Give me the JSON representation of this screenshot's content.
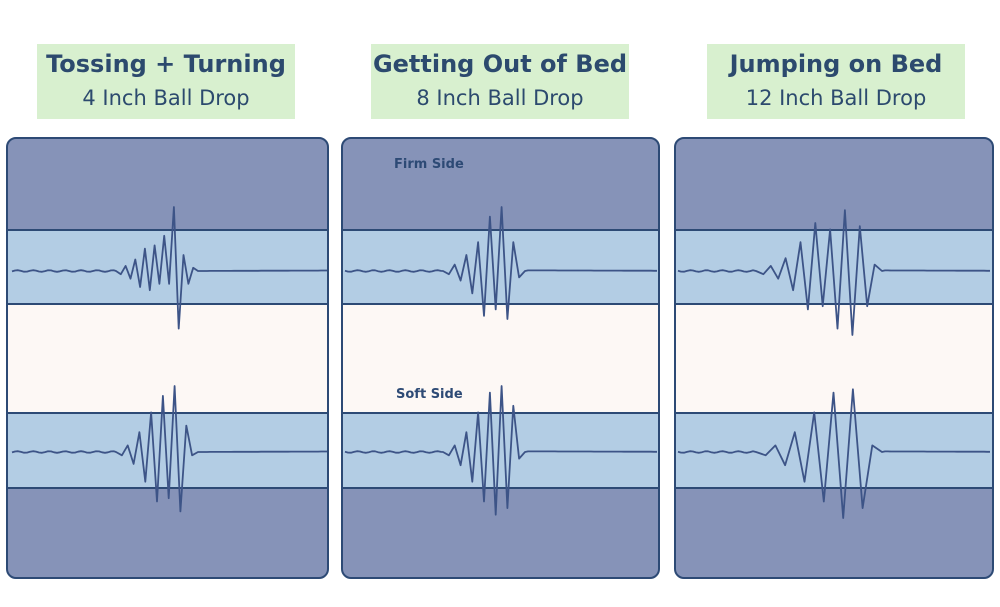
{
  "colors": {
    "label_bg": "#d8f0cf",
    "label_text": "#2c4a6e",
    "panel_bg": "#8693b8",
    "band_bg": "#b3cde4",
    "gap_bg": "#fdf8f5",
    "wave": "#3d5487",
    "border": "#2d4a75"
  },
  "chart_data": [
    {
      "type": "line",
      "title": "Tossing + Turning",
      "subtitle": "4 Inch Ball Drop",
      "series": [
        {
          "name": "",
          "peaks": [
            0.0,
            0.05,
            0.08,
            0.12,
            0.18,
            0.25,
            0.35,
            0.3,
            0.4,
            0.2,
            0.55,
            0.2,
            1.0,
            0.9,
            0.25,
            0.2,
            0.05,
            0.0
          ]
        },
        {
          "name": "",
          "peaks": [
            0.0,
            0.05,
            0.1,
            0.18,
            0.3,
            0.45,
            0.6,
            0.75,
            0.85,
            0.7,
            1.0,
            0.9,
            0.4,
            0.05,
            0.0
          ]
        }
      ]
    },
    {
      "type": "line",
      "title": "Getting Out of Bed",
      "subtitle": "8 Inch Ball Drop",
      "series": [
        {
          "name": "Firm Side",
          "peaks": [
            0.0,
            0.05,
            0.1,
            0.15,
            0.25,
            0.35,
            0.45,
            0.7,
            0.85,
            0.6,
            1.0,
            0.75,
            0.45,
            0.1,
            0.0
          ]
        },
        {
          "name": "Soft Side",
          "peaks": [
            0.0,
            0.05,
            0.1,
            0.2,
            0.3,
            0.45,
            0.6,
            0.75,
            0.9,
            0.95,
            1.0,
            0.85,
            0.7,
            0.1,
            0.0
          ]
        }
      ]
    },
    {
      "type": "line",
      "title": "Jumping on Bed",
      "subtitle": "12 Inch Ball Drop",
      "series": [
        {
          "name": "",
          "peaks": [
            0.0,
            0.05,
            0.08,
            0.12,
            0.2,
            0.3,
            0.45,
            0.6,
            0.75,
            0.55,
            0.65,
            0.9,
            0.95,
            1.0,
            0.7,
            0.55,
            0.1,
            0.0
          ]
        },
        {
          "name": "",
          "peaks": [
            0.0,
            0.05,
            0.1,
            0.2,
            0.3,
            0.45,
            0.6,
            0.75,
            0.9,
            1.0,
            0.95,
            0.85,
            0.1,
            0.0
          ]
        }
      ]
    }
  ]
}
